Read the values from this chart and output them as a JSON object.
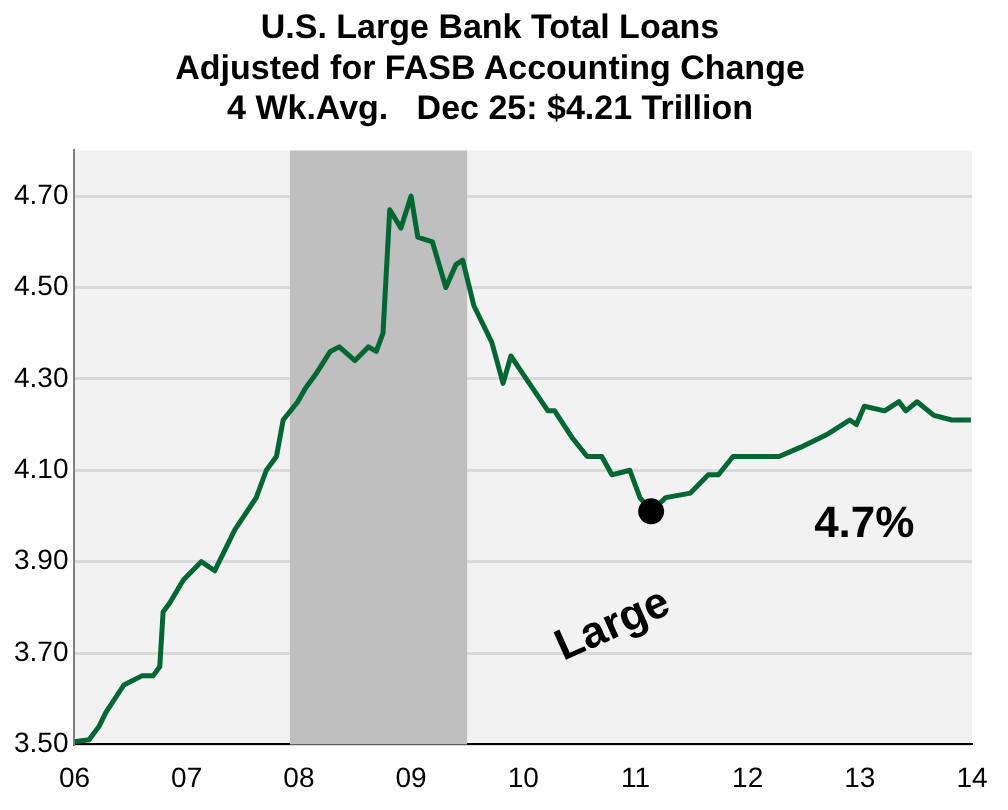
{
  "chart_data": {
    "type": "line",
    "title": "U.S. Large Bank Total Loans\nAdjusted for FASB Accounting Change\n4 Wk.Avg.   Dec 25: $4.21 Trillion",
    "xlim": [
      2006,
      2014
    ],
    "xticks": [
      {
        "value": 2006,
        "label": "06"
      },
      {
        "value": 2007,
        "label": "07"
      },
      {
        "value": 2008,
        "label": "08"
      },
      {
        "value": 2009,
        "label": "09"
      },
      {
        "value": 2010,
        "label": "10"
      },
      {
        "value": 2011,
        "label": "11"
      },
      {
        "value": 2012,
        "label": "12"
      },
      {
        "value": 2013,
        "label": "13"
      },
      {
        "value": 2014,
        "label": "14"
      }
    ],
    "ylim": [
      3.5,
      4.8
    ],
    "yticks": [
      {
        "value": 3.5,
        "label": "3.50"
      },
      {
        "value": 3.7,
        "label": "3.70"
      },
      {
        "value": 3.9,
        "label": "3.90"
      },
      {
        "value": 4.1,
        "label": "4.10"
      },
      {
        "value": 4.3,
        "label": "4.30"
      },
      {
        "value": 4.5,
        "label": "4.50"
      },
      {
        "value": 4.7,
        "label": "4.70"
      }
    ],
    "grid": "y",
    "legend": false,
    "marker": "none",
    "line_style": "solid",
    "bands": [
      {
        "axis": "x",
        "from": 2007.92,
        "to": 2009.5,
        "color": "#bfbfbf"
      }
    ],
    "annotations": [
      "Large",
      "4.7%"
    ],
    "series": [
      {
        "color": "#006633",
        "x": [
          2006.0,
          2006.13,
          2006.22,
          2006.28,
          2006.44,
          2006.6,
          2006.7,
          2006.76,
          2006.79,
          2006.85,
          2006.97,
          2007.13,
          2007.25,
          2007.43,
          2007.62,
          2007.71,
          2007.8,
          2007.86,
          2007.99,
          2008.06,
          2008.15,
          2008.28,
          2008.36,
          2008.5,
          2008.62,
          2008.69,
          2008.75,
          2008.81,
          2008.91,
          2009.0,
          2009.06,
          2009.19,
          2009.31,
          2009.4,
          2009.46,
          2009.56,
          2009.72,
          2009.82,
          2009.89,
          2010.0,
          2010.22,
          2010.28,
          2010.44,
          2010.57,
          2010.7,
          2010.79,
          2010.95,
          2011.04,
          2011.14,
          2011.27,
          2011.49,
          2011.65,
          2011.74,
          2011.87,
          2012.03,
          2012.28,
          2012.47,
          2012.72,
          2012.91,
          2012.97,
          2013.04,
          2013.22,
          2013.35,
          2013.41,
          2013.51,
          2013.66,
          2013.82,
          2013.99
        ],
        "values": [
          3.506,
          3.51,
          3.54,
          3.57,
          3.63,
          3.65,
          3.65,
          3.67,
          3.79,
          3.81,
          3.86,
          3.9,
          3.88,
          3.97,
          4.04,
          4.1,
          4.13,
          4.21,
          4.25,
          4.28,
          4.31,
          4.36,
          4.37,
          4.34,
          4.37,
          4.36,
          4.4,
          4.67,
          4.63,
          4.7,
          4.61,
          4.6,
          4.5,
          4.55,
          4.56,
          4.46,
          4.38,
          4.29,
          4.35,
          4.31,
          4.23,
          4.23,
          4.17,
          4.13,
          4.13,
          4.09,
          4.1,
          4.04,
          4.01,
          4.04,
          4.05,
          4.09,
          4.09,
          4.13,
          4.13,
          4.13,
          4.15,
          4.18,
          4.21,
          4.2,
          4.24,
          4.23,
          4.25,
          4.23,
          4.25,
          4.22,
          4.21,
          4.21
        ]
      },
      {
        "type": "scatter",
        "marker": "circle",
        "color": "#000000",
        "x": [
          2011.14
        ],
        "values": [
          4.01
        ]
      }
    ]
  }
}
